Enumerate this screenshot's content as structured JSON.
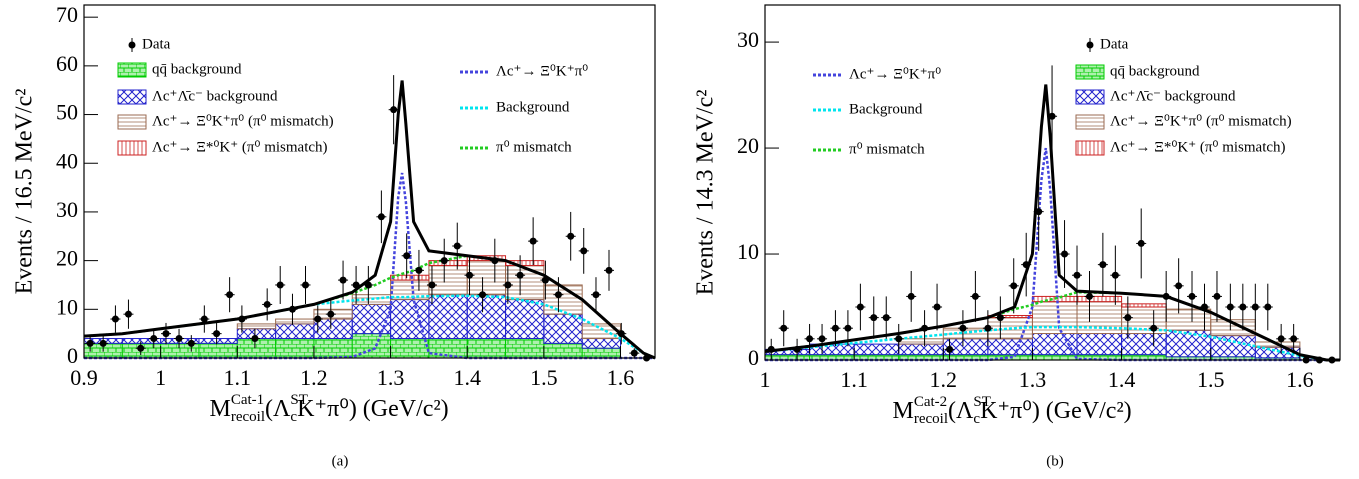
{
  "chart_data": [
    {
      "type": "fit",
      "caption": "(a)",
      "ylabel": "Events / 16.5 MeV/c²",
      "xlabel": [
        {
          "text": "M"
        },
        {
          "text": "Cat-1",
          "pos": "sup"
        },
        {
          "text": "recoil",
          "pos": "sub"
        },
        {
          "text": "(Λ"
        },
        {
          "text": "ST",
          "pos": "sup"
        },
        {
          "text": "c",
          "pos": "sub"
        },
        {
          "text": "K⁺π⁰) (GeV/c²)"
        }
      ],
      "xlim": [
        0.9,
        1.645
      ],
      "ylim": [
        0,
        72.5
      ],
      "xticks": [
        0.9,
        1,
        1.1,
        1.2,
        1.3,
        1.4,
        1.5,
        1.6
      ],
      "yticks": [
        0,
        10,
        20,
        30,
        40,
        50,
        60,
        70
      ],
      "data": {
        "name": "Data",
        "color": "#000000",
        "x": [
          0.908,
          0.925,
          0.941,
          0.958,
          0.974,
          0.991,
          1.007,
          1.024,
          1.04,
          1.057,
          1.073,
          1.09,
          1.106,
          1.123,
          1.139,
          1.156,
          1.172,
          1.189,
          1.205,
          1.222,
          1.238,
          1.255,
          1.271,
          1.288,
          1.304,
          1.321,
          1.337,
          1.354,
          1.37,
          1.387,
          1.403,
          1.42,
          1.436,
          1.453,
          1.469,
          1.486,
          1.502,
          1.519,
          1.535,
          1.552,
          1.568,
          1.585,
          1.601,
          1.618,
          1.634
        ],
        "values": [
          3,
          3,
          8,
          9,
          2,
          4,
          5,
          4,
          3,
          8,
          5,
          13,
          8,
          4,
          11,
          15,
          10,
          15,
          8,
          9,
          16,
          15,
          15,
          29,
          51,
          21,
          18,
          15,
          20,
          23,
          17,
          13,
          20,
          15,
          17,
          24,
          16,
          13,
          25,
          22,
          13,
          18,
          5,
          1,
          0
        ],
        "errors": [
          1.7,
          1.7,
          2.8,
          3,
          1.4,
          2,
          2.2,
          2,
          1.7,
          2.8,
          2.2,
          3.6,
          2.8,
          2,
          3.3,
          3.9,
          3.2,
          3.9,
          2.8,
          3,
          4,
          3.9,
          3.9,
          5.4,
          7.1,
          4.6,
          4.2,
          3.9,
          4.5,
          4.8,
          4.1,
          3.6,
          4.5,
          3.9,
          4.1,
          4.9,
          4,
          3.6,
          5,
          4.7,
          3.6,
          4.2,
          2.2,
          1,
          0
        ]
      },
      "bins": [
        0.9,
        0.95,
        1,
        1.05,
        1.1,
        1.15,
        1.2,
        1.25,
        1.3,
        1.35,
        1.4,
        1.45,
        1.5,
        1.55,
        1.6,
        1.645
      ],
      "histograms": [
        {
          "name": "qq̄ background",
          "color": "#00cc00",
          "hatch": "brick",
          "values": [
            3,
            3,
            3,
            3,
            4,
            4,
            4,
            5,
            4,
            4,
            4,
            4,
            3,
            2,
            0
          ]
        },
        {
          "name": "Λc⁺Λ̄c⁻ background",
          "color": "#2222cc",
          "hatch": "cross",
          "values": [
            1,
            1,
            1,
            1,
            2,
            3,
            4,
            6,
            8,
            9,
            9,
            8,
            6,
            2,
            0
          ]
        },
        {
          "name": "Λc⁺→ Ξ⁰K⁺π⁰ (π⁰ mismatch)",
          "color": "#9a6a50",
          "hatch": "horizontal",
          "values": [
            0,
            0,
            0,
            0,
            1,
            1,
            2,
            2,
            4,
            6,
            7,
            7,
            6,
            3,
            0
          ]
        },
        {
          "name": "Λc⁺→ Ξ*⁰K⁺ (π⁰ mismatch)",
          "color": "#cc2222",
          "hatch": "vertical",
          "values": [
            0,
            0,
            0,
            0,
            0,
            0,
            0,
            0,
            1,
            1,
            1,
            1,
            0,
            0,
            0
          ]
        }
      ],
      "curve_x": [
        0.9,
        0.95,
        1.0,
        1.05,
        1.1,
        1.15,
        1.2,
        1.25,
        1.28,
        1.3,
        1.31,
        1.315,
        1.32,
        1.33,
        1.35,
        1.4,
        1.45,
        1.5,
        1.55,
        1.6,
        1.63,
        1.645
      ],
      "total": {
        "color": "#000000",
        "values": [
          4.5,
          5,
          6,
          7,
          8,
          9.5,
          11,
          13.5,
          17,
          28,
          50,
          57,
          48,
          28,
          22,
          21,
          20,
          17,
          12,
          5,
          1,
          0
        ]
      },
      "curves": [
        {
          "name": "Λc⁺→ Ξ⁰K⁺π⁰",
          "color": "#4444dd",
          "values": [
            0,
            0,
            0,
            0,
            0,
            0,
            0,
            0.2,
            2,
            10,
            33,
            38,
            32,
            12,
            1,
            0,
            0,
            0,
            0,
            0,
            0,
            0
          ]
        },
        {
          "name": "Background",
          "color": "#00e5ee",
          "values": [
            4.5,
            5,
            6,
            7,
            8,
            9.5,
            11,
            11.8,
            12.2,
            12.5,
            12.5,
            12.5,
            12.5,
            12.6,
            12.7,
            12.8,
            12.5,
            11,
            8,
            4,
            1,
            0
          ]
        },
        {
          "name": "π⁰ mismatch",
          "color": "#22cc22",
          "values": [
            4.5,
            5,
            6,
            7,
            8,
            9.5,
            11,
            13.3,
            15,
            16.5,
            17,
            17.3,
            17.5,
            18,
            19.5,
            21,
            20,
            17,
            12,
            5,
            1,
            0
          ]
        }
      ]
    },
    {
      "type": "fit",
      "caption": "(b)",
      "ylabel": "Events / 14.3 MeV/c²",
      "xlabel": [
        {
          "text": "M"
        },
        {
          "text": "Cat-2",
          "pos": "sup"
        },
        {
          "text": "recoil",
          "pos": "sub"
        },
        {
          "text": "(Λ"
        },
        {
          "text": "ST",
          "pos": "sup"
        },
        {
          "text": "c",
          "pos": "sub"
        },
        {
          "text": "K⁺π⁰) (GeV/c²)"
        }
      ],
      "xlim": [
        1,
        1.645
      ],
      "ylim": [
        0,
        33.5
      ],
      "xticks": [
        1,
        1.1,
        1.2,
        1.3,
        1.4,
        1.5,
        1.6
      ],
      "yticks": [
        0,
        10,
        20,
        30
      ],
      "data": {
        "name": "Data",
        "color": "#000000",
        "x": [
          1.007,
          1.021,
          1.036,
          1.05,
          1.064,
          1.079,
          1.093,
          1.107,
          1.122,
          1.136,
          1.15,
          1.164,
          1.179,
          1.193,
          1.207,
          1.222,
          1.236,
          1.25,
          1.264,
          1.279,
          1.293,
          1.307,
          1.322,
          1.336,
          1.35,
          1.364,
          1.379,
          1.393,
          1.407,
          1.422,
          1.436,
          1.45,
          1.464,
          1.479,
          1.493,
          1.507,
          1.522,
          1.536,
          1.55,
          1.564,
          1.579,
          1.593,
          1.607,
          1.622,
          1.636
        ],
        "values": [
          1,
          3,
          1,
          2,
          2,
          3,
          3,
          5,
          4,
          4,
          2,
          6,
          3,
          5,
          1,
          3,
          6,
          3,
          4,
          7,
          9,
          14,
          23,
          10,
          8,
          6,
          9,
          8,
          4,
          11,
          3,
          6,
          7,
          6,
          5,
          6,
          5,
          5,
          5,
          5,
          2,
          2,
          0,
          0,
          0
        ],
        "errors": [
          1,
          1.7,
          1,
          1.4,
          1.4,
          1.7,
          1.7,
          2.2,
          2,
          2,
          1.4,
          2.4,
          1.7,
          2.2,
          1,
          1.7,
          2.4,
          1.7,
          2,
          2.6,
          3,
          3.7,
          4.8,
          3.2,
          2.8,
          2.4,
          3,
          2.8,
          2,
          3.3,
          1.7,
          2.4,
          2.6,
          2.4,
          2.2,
          2.4,
          2.2,
          2.2,
          2.2,
          2.2,
          1.4,
          1.4,
          0,
          0,
          0
        ]
      },
      "bins": [
        1,
        1.05,
        1.1,
        1.15,
        1.2,
        1.25,
        1.3,
        1.35,
        1.4,
        1.45,
        1.5,
        1.55,
        1.6,
        1.645
      ],
      "histograms": [
        {
          "name": "qq̄ background",
          "color": "#00cc00",
          "hatch": "brick",
          "values": [
            0.5,
            0.5,
            0.5,
            0.5,
            0.5,
            0.5,
            0.5,
            0.5,
            0.5,
            0.3,
            0.3,
            0.2,
            0
          ]
        },
        {
          "name": "Λc⁺Λ̄c⁻ background",
          "color": "#2222cc",
          "hatch": "cross",
          "values": [
            0.5,
            1,
            1,
            1,
            1.5,
            1.5,
            2,
            2,
            2,
            2.5,
            2,
            1,
            0
          ]
        },
        {
          "name": "Λc⁺→ Ξ⁰K⁺π⁰ (π⁰ mismatch)",
          "color": "#9a6a50",
          "hatch": "horizontal",
          "values": [
            0,
            0,
            0,
            0.5,
            1,
            2,
            3,
            3,
            2.5,
            2,
            1.5,
            0.5,
            0
          ]
        },
        {
          "name": "Λc⁺→ Ξ*⁰K⁺ (π⁰ mismatch)",
          "color": "#cc2222",
          "hatch": "vertical",
          "values": [
            0,
            0,
            0,
            0,
            0,
            0.2,
            0.5,
            0.5,
            0.3,
            0,
            0,
            0,
            0
          ]
        }
      ],
      "curve_x": [
        1.0,
        1.05,
        1.1,
        1.15,
        1.2,
        1.25,
        1.28,
        1.3,
        1.31,
        1.315,
        1.32,
        1.33,
        1.35,
        1.4,
        1.45,
        1.5,
        1.55,
        1.6,
        1.63,
        1.645
      ],
      "total": {
        "color": "#000000",
        "values": [
          0.8,
          1.3,
          1.9,
          2.5,
          3.2,
          4,
          5,
          10,
          22,
          26,
          21,
          8,
          6.5,
          6.3,
          6,
          4.5,
          2.5,
          0.5,
          0,
          0
        ]
      },
      "curves": [
        {
          "name": "Λc⁺→ Ξ⁰K⁺π⁰",
          "color": "#4444dd",
          "values": [
            0,
            0,
            0,
            0,
            0,
            0,
            0.3,
            5,
            17,
            20,
            16,
            3,
            0.1,
            0,
            0,
            0,
            0,
            0,
            0,
            0
          ]
        },
        {
          "name": "Background",
          "color": "#00e5ee",
          "values": [
            0.8,
            1.2,
            1.6,
            2,
            2.4,
            2.8,
            3,
            3.1,
            3.1,
            3.1,
            3.1,
            3.1,
            3.1,
            3,
            2.8,
            2.2,
            1.3,
            0.4,
            0,
            0
          ]
        },
        {
          "name": "π⁰ mismatch",
          "color": "#22cc22",
          "values": [
            0.8,
            1.3,
            1.9,
            2.5,
            3.2,
            4,
            4.8,
            5.2,
            5.5,
            5.6,
            5.7,
            5.9,
            6.4,
            6.3,
            6,
            4.5,
            2.5,
            0.5,
            0,
            0
          ]
        }
      ]
    }
  ]
}
